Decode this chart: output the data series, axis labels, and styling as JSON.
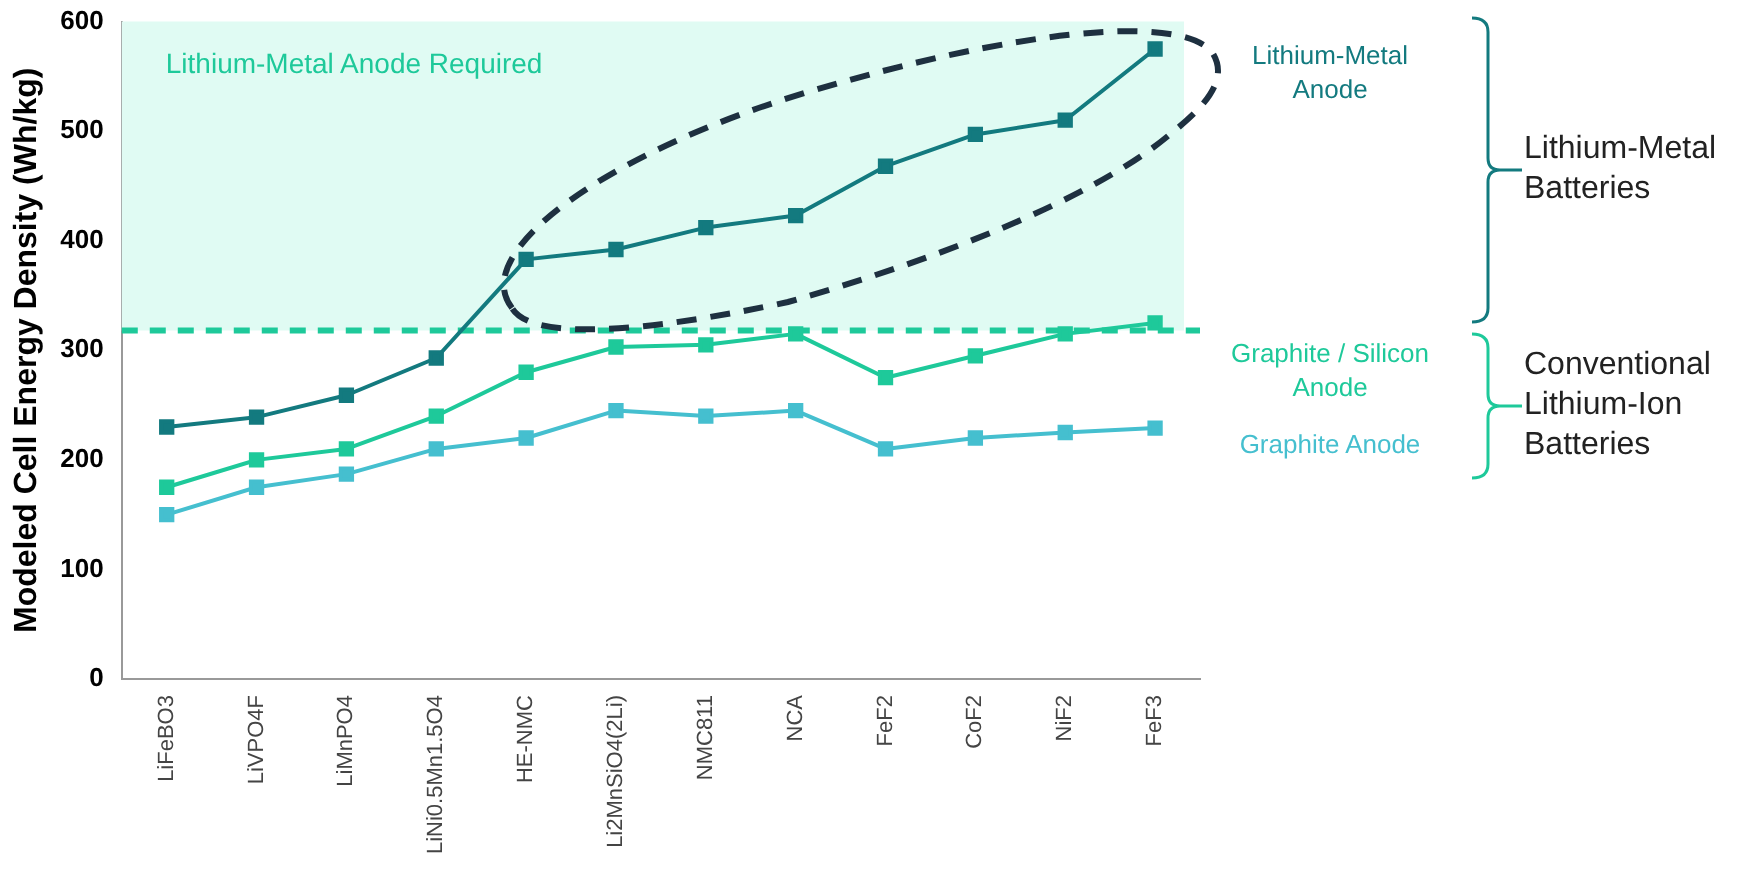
{
  "chart_data": {
    "type": "line",
    "ylabel": "Modeled Cell Energy Density (Wh/kg)",
    "categories": [
      "LiFeBO3",
      "LiVPO4F",
      "LiMnPO4",
      "LiNi0.5Mn1.5O4",
      "HE-NMC",
      "Li2MnSiO4(2Li)",
      "NMC811",
      "NCA",
      "FeF2",
      "CoF2",
      "NiF2",
      "FeF3"
    ],
    "series": [
      {
        "name": "Lithium-Metal Anode",
        "color": "#137a7f",
        "values": [
          230,
          239,
          259,
          293,
          383,
          392,
          412,
          423,
          468,
          497,
          510,
          575
        ]
      },
      {
        "name": "Graphite / Silicon Anode",
        "color": "#1ec99a",
        "values": [
          175,
          200,
          210,
          240,
          280,
          303,
          305,
          315,
          275,
          295,
          315,
          325
        ]
      },
      {
        "name": "Graphite Anode",
        "color": "#45bfcf",
        "values": [
          150,
          175,
          187,
          210,
          220,
          245,
          240,
          245,
          210,
          220,
          225,
          229
        ]
      }
    ],
    "ylim": [
      0,
      600
    ],
    "yticks": [
      0,
      100,
      200,
      300,
      400,
      500,
      600
    ],
    "bands": [
      {
        "axis": "y",
        "from": 318,
        "to": 600,
        "label": "Lithium-Metal Anode Required",
        "color": "#e0fbf3"
      }
    ],
    "ref_lines": [
      {
        "axis": "y",
        "value": 318,
        "color": "#1ec99a",
        "line_style": "dashed"
      }
    ],
    "annotations": [
      "Lithium-Metal Batteries",
      "Conventional Lithium-Ion Batteries"
    ],
    "grid": false,
    "legend": false,
    "marker": "square",
    "line_style": "solid"
  }
}
